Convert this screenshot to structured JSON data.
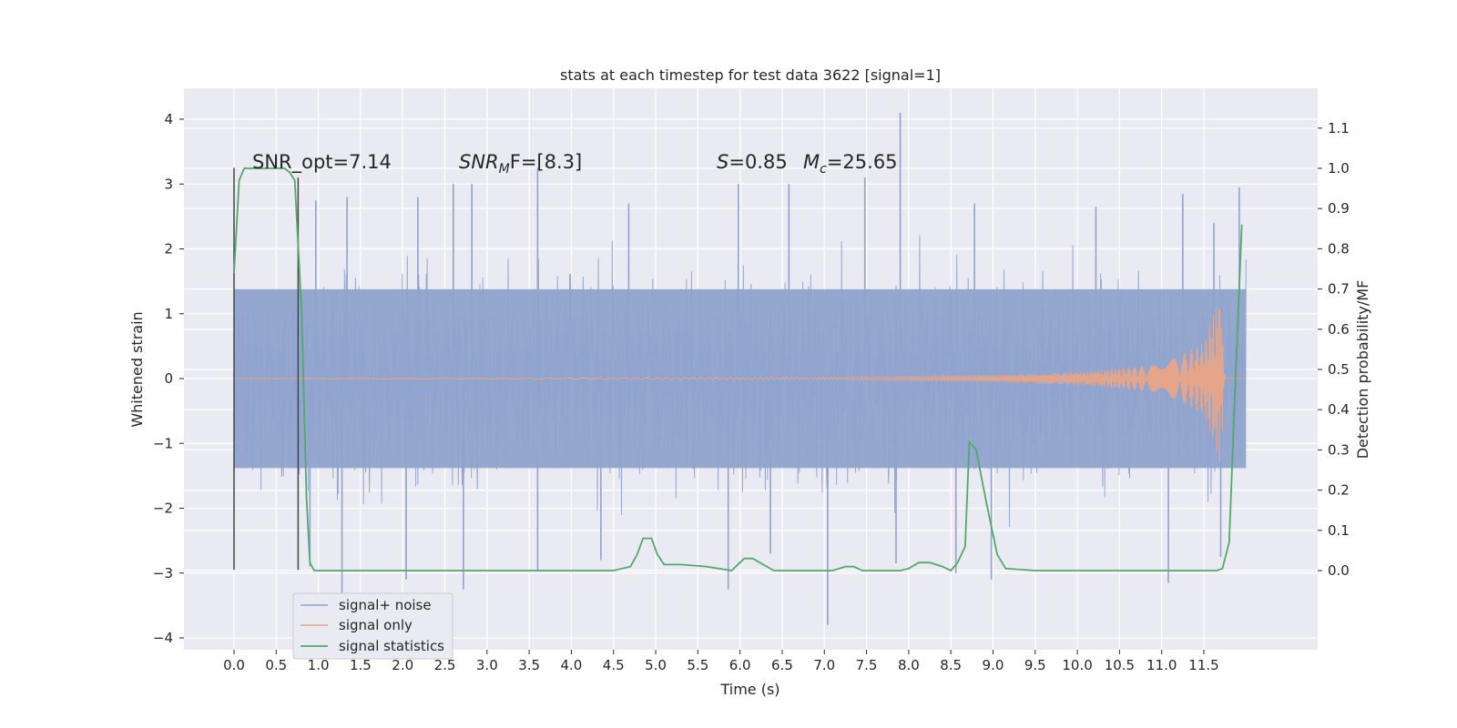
{
  "chart_data": {
    "type": "line",
    "title": "stats at each timestep for test data 3622 [signal=1]",
    "xlabel": "Time (s)",
    "ylabel": "Whitened strain",
    "y2label": "Detection probability/MF",
    "xlim": [
      -0.58,
      12.6
    ],
    "ylim": [
      -4.2,
      4.45
    ],
    "y2lim": [
      -0.175,
      1.215
    ],
    "x_ticks": [
      0.0,
      0.5,
      1.0,
      1.5,
      2.0,
      2.5,
      3.0,
      3.5,
      4.0,
      4.5,
      5.0,
      5.5,
      6.0,
      6.5,
      7.0,
      7.5,
      8.0,
      8.5,
      9.0,
      9.5,
      10.0,
      10.5,
      11.0,
      11.5
    ],
    "x_tick_labels": [
      "0.0",
      "0.5",
      "1.0",
      "1.5",
      "2.0",
      "2.5",
      "3.0",
      "3.5",
      "4.0",
      "4.5",
      "5.0",
      "5.5",
      "6.0",
      "6.5",
      "7.0",
      "7.5",
      "8.0",
      "8.5",
      "9.0",
      "9.5",
      "10.0",
      "10.5",
      "11.0",
      "11.5"
    ],
    "y_ticks": [
      4,
      3,
      2,
      1,
      0,
      -1,
      -2,
      -3,
      -4
    ],
    "y_tick_labels": [
      "4",
      "3",
      "2",
      "1",
      "0",
      "−1",
      "−2",
      "−3",
      "−4"
    ],
    "y2_ticks": [
      1.1,
      1.0,
      0.9,
      0.8,
      0.7,
      0.6,
      0.5,
      0.4,
      0.3,
      0.2,
      0.1,
      0.0
    ],
    "y2_tick_labels": [
      "1.1",
      "1.0",
      "0.9",
      "0.8",
      "0.7",
      "0.6",
      "0.5",
      "0.4",
      "0.3",
      "0.2",
      "0.1",
      "0.0"
    ],
    "grid": true,
    "legend_position": "bottom-left",
    "series": [
      {
        "name": "signal+ noise",
        "color": "#8fa3cc",
        "axis": "left",
        "style": "dense noise, sample band approx -1.6 to 1.6 with spikes",
        "x_range": [
          0.0,
          12.0
        ],
        "band": [
          -1.6,
          1.6
        ],
        "spikes": [
          {
            "x": 7.9,
            "y": 4.1
          },
          {
            "x": 3.6,
            "y": 3.25
          },
          {
            "x": 7.48,
            "y": 3.1
          },
          {
            "x": 2.6,
            "y": 3.0
          },
          {
            "x": 2.82,
            "y": 3.0
          },
          {
            "x": 5.98,
            "y": 3.0
          },
          {
            "x": 6.58,
            "y": 3.0
          },
          {
            "x": 11.92,
            "y": 2.95
          },
          {
            "x": 11.25,
            "y": 2.85
          },
          {
            "x": 0.97,
            "y": 2.75
          },
          {
            "x": 1.34,
            "y": 2.8
          },
          {
            "x": 2.18,
            "y": 2.8
          },
          {
            "x": 4.68,
            "y": 2.7
          },
          {
            "x": 8.78,
            "y": 2.7
          },
          {
            "x": 10.22,
            "y": 2.65
          },
          {
            "x": 11.62,
            "y": 2.4
          },
          {
            "x": 1.28,
            "y": -3.3
          },
          {
            "x": 7.04,
            "y": -3.8
          },
          {
            "x": 2.72,
            "y": -3.25
          },
          {
            "x": 5.86,
            "y": -3.25
          },
          {
            "x": 11.08,
            "y": -3.15
          },
          {
            "x": 8.98,
            "y": -3.1
          },
          {
            "x": 2.04,
            "y": -3.1
          },
          {
            "x": 0.9,
            "y": -2.9
          },
          {
            "x": 3.6,
            "y": -2.95
          },
          {
            "x": 7.85,
            "y": -2.85
          },
          {
            "x": 8.56,
            "y": -3.0
          },
          {
            "x": 11.7,
            "y": -2.75
          },
          {
            "x": 4.35,
            "y": -2.8
          },
          {
            "x": 6.36,
            "y": -2.7
          }
        ]
      },
      {
        "name": "signal only",
        "color": "#e5a58a",
        "axis": "left",
        "style": "chirp growing toward merger",
        "x_range": [
          0.0,
          12.0
        ],
        "envelope_points": [
          [
            0.0,
            0.0
          ],
          [
            7.0,
            0.015
          ],
          [
            9.0,
            0.05
          ],
          [
            10.0,
            0.1
          ],
          [
            11.0,
            0.22
          ],
          [
            11.5,
            0.55
          ],
          [
            11.7,
            1.35
          ],
          [
            11.75,
            0.0
          ],
          [
            12.0,
            0.0
          ]
        ]
      },
      {
        "name": "signal statistics",
        "color": "#55a868",
        "axis": "right",
        "x": [
          0.0,
          0.06,
          0.12,
          0.2,
          0.3,
          0.45,
          0.6,
          0.66,
          0.72,
          0.8,
          0.86,
          0.9,
          0.95,
          1.1,
          2.0,
          3.0,
          4.0,
          4.5,
          4.7,
          4.78,
          4.85,
          4.95,
          5.02,
          5.1,
          5.3,
          5.6,
          5.9,
          6.05,
          6.15,
          6.4,
          6.8,
          7.1,
          7.25,
          7.35,
          7.45,
          7.6,
          7.9,
          8.0,
          8.12,
          8.25,
          8.4,
          8.5,
          8.58,
          8.67,
          8.72,
          8.8,
          8.92,
          9.05,
          9.15,
          9.5,
          10.0,
          10.5,
          11.0,
          11.5,
          11.65,
          11.72,
          11.8,
          11.88,
          11.95
        ],
        "values": [
          0.74,
          0.97,
          1.0,
          1.0,
          1.0,
          1.0,
          1.0,
          0.99,
          0.97,
          0.65,
          0.18,
          0.02,
          0.0,
          0.0,
          0.0,
          0.0,
          0.0,
          0.0,
          0.01,
          0.04,
          0.08,
          0.08,
          0.04,
          0.015,
          0.015,
          0.01,
          0.0,
          0.03,
          0.03,
          0.0,
          0.0,
          0.0,
          0.01,
          0.01,
          0.0,
          0.0,
          0.0,
          0.005,
          0.02,
          0.02,
          0.01,
          0.0,
          0.02,
          0.06,
          0.32,
          0.3,
          0.17,
          0.04,
          0.005,
          0.0,
          0.0,
          0.0,
          0.0,
          0.0,
          0.0,
          0.005,
          0.07,
          0.5,
          0.86
        ]
      }
    ],
    "markers": [
      {
        "x": 0.0,
        "y_from": -2.95,
        "y_to": 3.25,
        "color": "#444444"
      },
      {
        "x": 0.76,
        "y_from": -2.95,
        "y_to": 3.1,
        "color": "#444444"
      }
    ],
    "annotations": [
      {
        "text": "SNR_opt=7.14",
        "x": 0.2,
        "y": 3.25,
        "italic": false
      },
      {
        "base": "SNR",
        "sub": "M",
        "tail": "F=[8.3]",
        "x": 2.62,
        "y": 3.25
      },
      {
        "base": "S",
        "tail": "=0.85",
        "x": 5.62,
        "y": 3.25
      },
      {
        "base": "M",
        "sub": "c",
        "tail": "=25.65",
        "x": 6.62,
        "y": 3.25
      }
    ]
  },
  "legend": {
    "items": [
      {
        "label": "signal+ noise",
        "color": "#8fa3cc"
      },
      {
        "label": "signal only",
        "color": "#e5a58a"
      },
      {
        "label": "signal statistics",
        "color": "#55a868"
      }
    ]
  }
}
